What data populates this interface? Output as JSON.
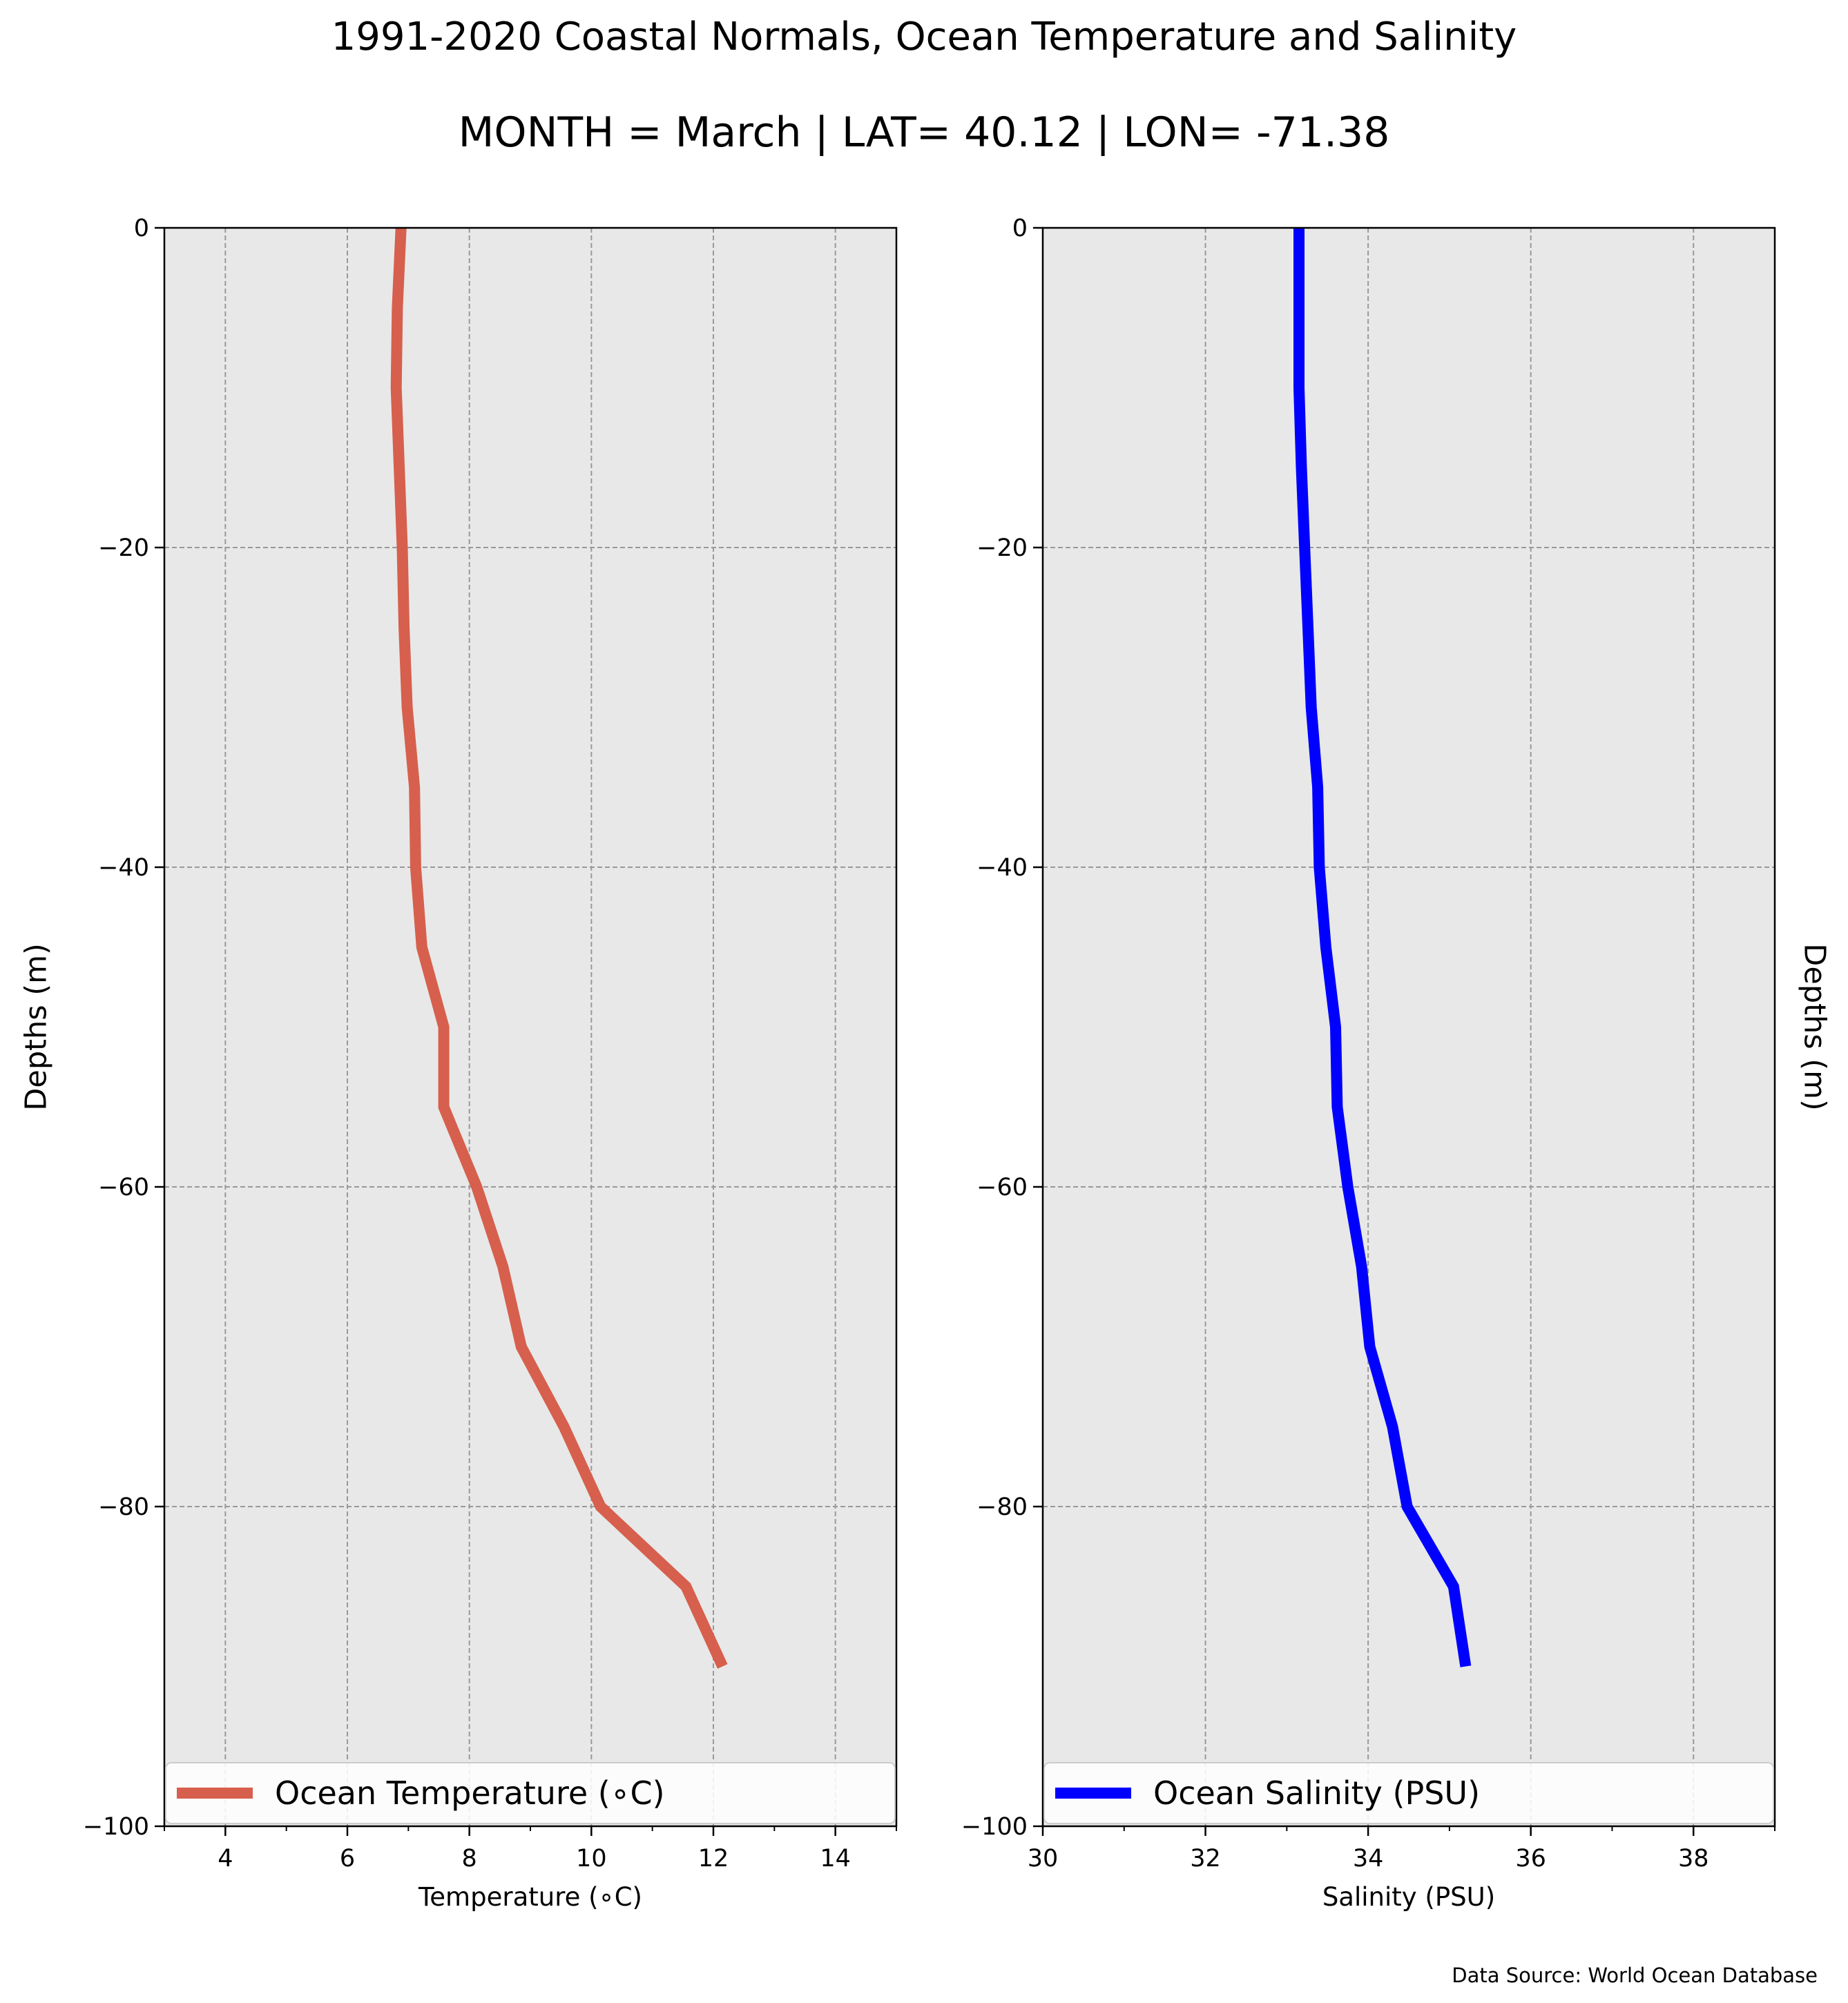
{
  "title": "1991-2020 Coastal Normals, Ocean Temperature and Salinity",
  "subtitle": "MONTH = March | LAT= 40.12 | LON= -71.38",
  "source": "Data Source: World Ocean Database",
  "colors": {
    "background": "#ffffff",
    "plot_bg": "#e8e8e8",
    "grid": "#999999",
    "temperature": "#d6604d",
    "salinity": "#0000ff"
  },
  "chart_data": [
    {
      "type": "line",
      "xlabel": "Temperature ($^\\circ$C)",
      "xlabel_text": "Temperature (∘C)",
      "ylabel": "Depths (m)",
      "ylabel_side": "left",
      "xlim": [
        3,
        15
      ],
      "ylim": [
        -100,
        0
      ],
      "xticks": [
        4,
        6,
        8,
        10,
        12,
        14
      ],
      "xminor": [
        3,
        5,
        7,
        9,
        11,
        13,
        15
      ],
      "yticks": [
        0,
        -20,
        -40,
        -60,
        -80,
        -100
      ],
      "grid": true,
      "legend": "bottom",
      "series": [
        {
          "name": "Ocean Temperature (∘C)",
          "color": "#d6604d",
          "points": [
            [
              6.88,
              0
            ],
            [
              6.82,
              -5
            ],
            [
              6.8,
              -10
            ],
            [
              6.85,
              -15
            ],
            [
              6.9,
              -20
            ],
            [
              6.93,
              -25
            ],
            [
              6.98,
              -30
            ],
            [
              7.1,
              -35
            ],
            [
              7.12,
              -40
            ],
            [
              7.22,
              -45
            ],
            [
              7.58,
              -50
            ],
            [
              7.58,
              -55
            ],
            [
              8.12,
              -60
            ],
            [
              8.55,
              -65
            ],
            [
              8.85,
              -70
            ],
            [
              9.55,
              -75
            ],
            [
              10.15,
              -80
            ],
            [
              11.55,
              -85
            ],
            [
              12.15,
              -90
            ]
          ]
        }
      ]
    },
    {
      "type": "line",
      "xlabel": "Salinity (PSU)",
      "ylabel": "Depths (m)",
      "ylabel_side": "right",
      "xlim": [
        30,
        39
      ],
      "ylim": [
        -100,
        0
      ],
      "xticks": [
        30,
        32,
        34,
        36,
        38
      ],
      "xminor": [
        31,
        33,
        35,
        37,
        39
      ],
      "yticks": [
        0,
        -20,
        -40,
        -60,
        -80,
        -100
      ],
      "grid": true,
      "legend": "bottom",
      "series": [
        {
          "name": "Ocean Salinity (PSU)",
          "color": "#0000ff",
          "points": [
            [
              33.15,
              0
            ],
            [
              33.15,
              -5
            ],
            [
              33.15,
              -10
            ],
            [
              33.18,
              -15
            ],
            [
              33.22,
              -20
            ],
            [
              33.26,
              -25
            ],
            [
              33.3,
              -30
            ],
            [
              33.38,
              -35
            ],
            [
              33.4,
              -40
            ],
            [
              33.48,
              -45
            ],
            [
              33.6,
              -50
            ],
            [
              33.62,
              -55
            ],
            [
              33.75,
              -60
            ],
            [
              33.92,
              -65
            ],
            [
              34.02,
              -70
            ],
            [
              34.3,
              -75
            ],
            [
              34.48,
              -80
            ],
            [
              35.05,
              -85
            ],
            [
              35.2,
              -90
            ]
          ]
        }
      ]
    }
  ]
}
